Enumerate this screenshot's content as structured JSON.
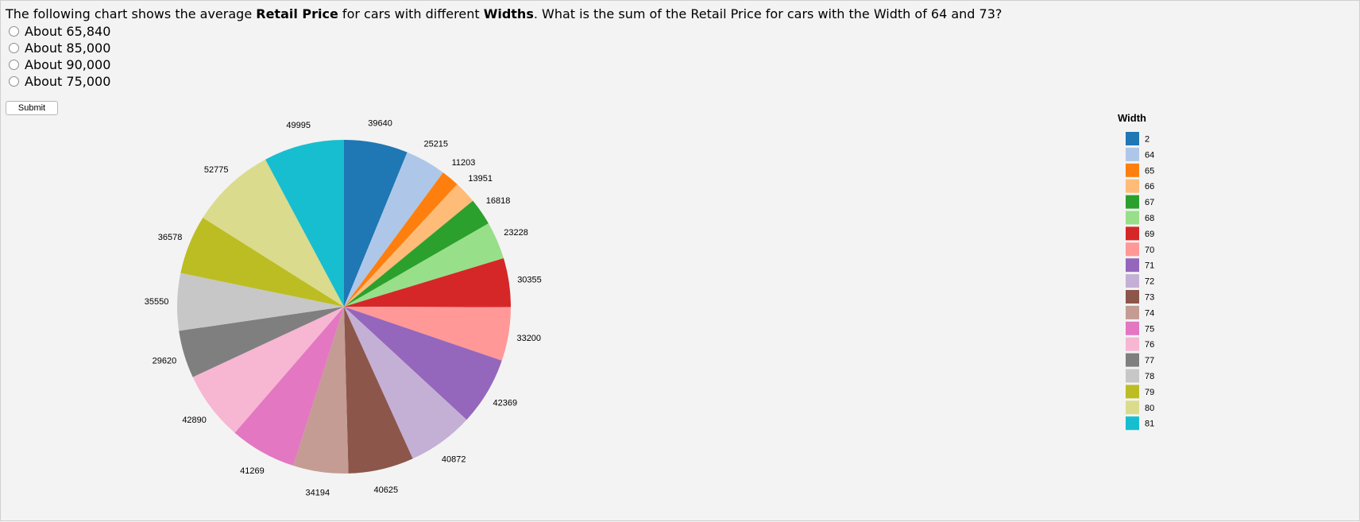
{
  "question": {
    "prefix": "The following chart shows the average ",
    "bold1": "Retail Price",
    "middle": " for cars with different ",
    "bold2": "Widths",
    "suffix": ". What is the sum of the Retail Price for cars with the Width of 64 and 73?"
  },
  "options": [
    "About 65,840",
    "About 85,000",
    "About 90,000",
    "About 75,000"
  ],
  "submit_label": "Submit",
  "chart_data": {
    "type": "pie",
    "legend_title": "Width",
    "legend_position": "right",
    "slices": [
      {
        "label": "2",
        "value": 39640,
        "color": "#1f77b4"
      },
      {
        "label": "64",
        "value": 25215,
        "color": "#aec7e8"
      },
      {
        "label": "65",
        "value": 11203,
        "color": "#ff7f0e"
      },
      {
        "label": "66",
        "value": 13951,
        "color": "#ffbb78"
      },
      {
        "label": "67",
        "value": 16818,
        "color": "#2ca02c"
      },
      {
        "label": "68",
        "value": 23228,
        "color": "#98df8a"
      },
      {
        "label": "69",
        "value": 30355,
        "color": "#d62728"
      },
      {
        "label": "70",
        "value": 33200,
        "color": "#ff9896"
      },
      {
        "label": "71",
        "value": 42369,
        "color": "#9467bd"
      },
      {
        "label": "72",
        "value": 40872,
        "color": "#c5b0d5"
      },
      {
        "label": "73",
        "value": 40625,
        "color": "#8c564b"
      },
      {
        "label": "74",
        "value": 34194,
        "color": "#c49c94"
      },
      {
        "label": "75",
        "value": 41269,
        "color": "#e377c2"
      },
      {
        "label": "76",
        "value": 42890,
        "color": "#f7b6d2"
      },
      {
        "label": "77",
        "value": 29620,
        "color": "#7f7f7f"
      },
      {
        "label": "78",
        "value": 35550,
        "color": "#c7c7c7"
      },
      {
        "label": "79",
        "value": 36578,
        "color": "#bcbd22"
      },
      {
        "label": "80",
        "value": 52775,
        "color": "#dbdb8d"
      },
      {
        "label": "81",
        "value": 49995,
        "color": "#17becf"
      }
    ]
  }
}
